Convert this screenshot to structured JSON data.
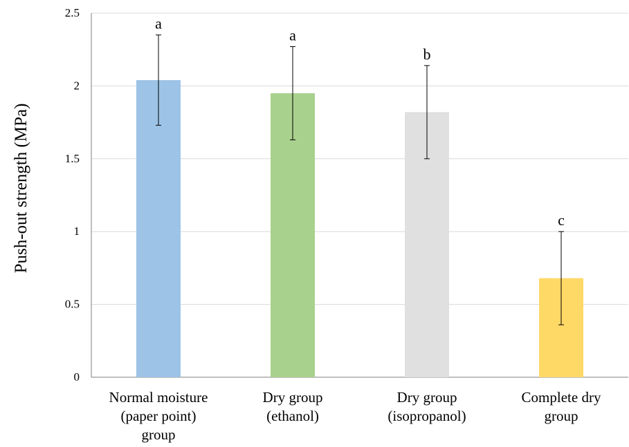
{
  "chart_data": {
    "type": "bar",
    "ylabel": "Push-out strength (MPa)",
    "xlabel": "",
    "ylim": [
      0,
      2.5
    ],
    "yticks": [
      "0",
      "0.5",
      "1",
      "1.5",
      "2",
      "2.5"
    ],
    "grid": true,
    "categories": [
      [
        "Normal moisture",
        "(paper point)",
        "group"
      ],
      [
        "Dry group",
        "(ethanol)"
      ],
      [
        "Dry group",
        "(isopropanol)"
      ],
      [
        "Complete dry",
        "group"
      ]
    ],
    "values": [
      2.04,
      1.95,
      1.82,
      0.68
    ],
    "errors": [
      0.31,
      0.32,
      0.32,
      0.32
    ],
    "significance": [
      "a",
      "a",
      "b",
      "c"
    ],
    "colors": [
      "#9dc3e6",
      "#a9d18e",
      "#e0e0e0",
      "#ffd966"
    ]
  }
}
